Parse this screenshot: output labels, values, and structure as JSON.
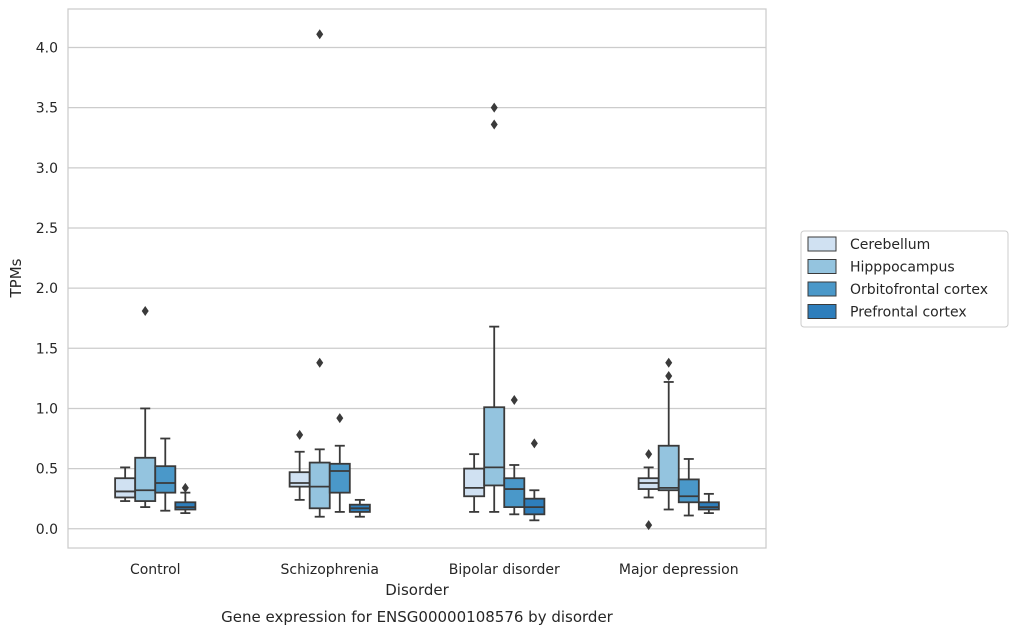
{
  "chart_data": {
    "type": "box",
    "caption": "Gene expression for ENSG00000108576 by disorder",
    "xlabel": "Disorder",
    "ylabel": "TPMs",
    "ylim": [
      -0.16,
      4.32
    ],
    "yticks": [
      0.0,
      0.5,
      1.0,
      1.5,
      2.0,
      2.5,
      3.0,
      3.5,
      4.0
    ],
    "ytick_labels": [
      "0.0",
      "0.5",
      "1.0",
      "1.5",
      "2.0",
      "2.5",
      "3.0",
      "3.5",
      "4.0"
    ],
    "grid": "horizontal",
    "legend_position": "right",
    "categories": [
      "Control",
      "Schizophrenia",
      "Bipolar disorder",
      "Major depression"
    ],
    "series": [
      {
        "name": "Cerebellum",
        "color": "#d0e1f2",
        "boxes": [
          {
            "whislo": 0.23,
            "q1": 0.26,
            "med": 0.31,
            "q3": 0.42,
            "whishi": 0.51,
            "fliers": []
          },
          {
            "whislo": 0.24,
            "q1": 0.35,
            "med": 0.38,
            "q3": 0.47,
            "whishi": 0.64,
            "fliers": [
              0.78
            ]
          },
          {
            "whislo": 0.14,
            "q1": 0.27,
            "med": 0.34,
            "q3": 0.5,
            "whishi": 0.62,
            "fliers": []
          },
          {
            "whislo": 0.26,
            "q1": 0.33,
            "med": 0.38,
            "q3": 0.42,
            "whishi": 0.51,
            "fliers": [
              0.62,
              0.03
            ]
          }
        ]
      },
      {
        "name": "Hipppocampus",
        "color": "#94c4df",
        "boxes": [
          {
            "whislo": 0.18,
            "q1": 0.23,
            "med": 0.32,
            "q3": 0.59,
            "whishi": 1.0,
            "fliers": [
              1.81
            ]
          },
          {
            "whislo": 0.1,
            "q1": 0.17,
            "med": 0.35,
            "q3": 0.55,
            "whishi": 0.66,
            "fliers": [
              1.38,
              4.11
            ]
          },
          {
            "whislo": 0.14,
            "q1": 0.36,
            "med": 0.51,
            "q3": 1.01,
            "whishi": 1.68,
            "fliers": [
              3.36,
              3.5
            ]
          },
          {
            "whislo": 0.16,
            "q1": 0.32,
            "med": 0.34,
            "q3": 0.69,
            "whishi": 1.22,
            "fliers": [
              1.27,
              1.38
            ]
          }
        ]
      },
      {
        "name": "Orbitofrontal cortex",
        "color": "#4a98c9",
        "boxes": [
          {
            "whislo": 0.15,
            "q1": 0.3,
            "med": 0.38,
            "q3": 0.52,
            "whishi": 0.75,
            "fliers": []
          },
          {
            "whislo": 0.14,
            "q1": 0.3,
            "med": 0.48,
            "q3": 0.54,
            "whishi": 0.69,
            "fliers": [
              0.92
            ]
          },
          {
            "whislo": 0.12,
            "q1": 0.18,
            "med": 0.33,
            "q3": 0.42,
            "whishi": 0.53,
            "fliers": [
              1.07
            ]
          },
          {
            "whislo": 0.11,
            "q1": 0.22,
            "med": 0.27,
            "q3": 0.41,
            "whishi": 0.58,
            "fliers": []
          }
        ]
      },
      {
        "name": "Prefrontal cortex",
        "color": "#2e7ebc",
        "boxes": [
          {
            "whislo": 0.13,
            "q1": 0.16,
            "med": 0.18,
            "q3": 0.22,
            "whishi": 0.3,
            "fliers": [
              0.34
            ]
          },
          {
            "whislo": 0.1,
            "q1": 0.14,
            "med": 0.17,
            "q3": 0.2,
            "whishi": 0.24,
            "fliers": []
          },
          {
            "whislo": 0.07,
            "q1": 0.12,
            "med": 0.18,
            "q3": 0.25,
            "whishi": 0.32,
            "fliers": [
              0.71
            ]
          },
          {
            "whislo": 0.13,
            "q1": 0.16,
            "med": 0.18,
            "q3": 0.22,
            "whishi": 0.29,
            "fliers": []
          }
        ]
      }
    ]
  }
}
